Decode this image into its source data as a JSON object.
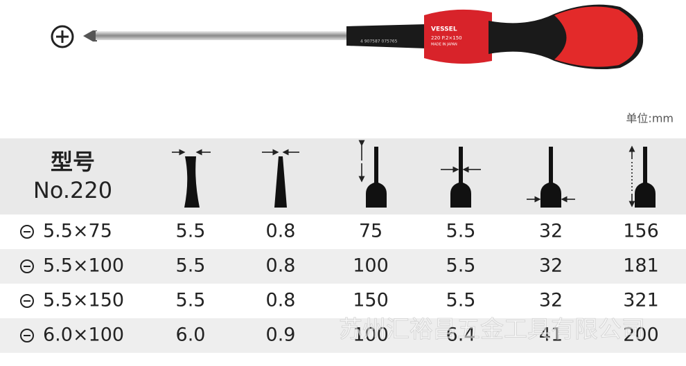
{
  "product_label": {
    "brand": "VESSEL",
    "model": "220 P.2×150",
    "origin": "MADE IN JAPAN",
    "barcode": "4 907587 075765"
  },
  "unit": "单位:mm",
  "header": {
    "model_label": "型号",
    "model_number": "No.220"
  },
  "table": {
    "rows": [
      [
        "5.5×75",
        "5.5",
        "0.8",
        "75",
        "5.5",
        "32",
        "156"
      ],
      [
        "5.5×100",
        "5.5",
        "0.8",
        "100",
        "5.5",
        "32",
        "181"
      ],
      [
        "5.5×150",
        "5.5",
        "0.8",
        "150",
        "5.5",
        "32",
        "321"
      ],
      [
        "6.0×100",
        "6.0",
        "0.9",
        "100",
        "6.4",
        "41",
        "200"
      ]
    ]
  },
  "watermark": "苏州汇裕昌五金工具有限公司"
}
